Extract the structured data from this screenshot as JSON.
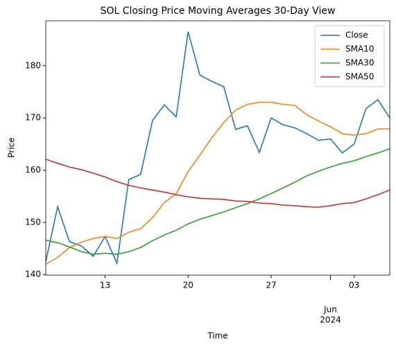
{
  "chart_data": {
    "type": "line",
    "title": "SOL Closing Price Moving Averages 30-Day View",
    "xlabel": "Time",
    "ylabel": "Price",
    "x": [
      "2024-05-08",
      "2024-05-09",
      "2024-05-10",
      "2024-05-11",
      "2024-05-12",
      "2024-05-13",
      "2024-05-14",
      "2024-05-15",
      "2024-05-16",
      "2024-05-17",
      "2024-05-18",
      "2024-05-19",
      "2024-05-20",
      "2024-05-21",
      "2024-05-22",
      "2024-05-23",
      "2024-05-24",
      "2024-05-25",
      "2024-05-26",
      "2024-05-27",
      "2024-05-28",
      "2024-05-29",
      "2024-05-30",
      "2024-05-31",
      "2024-06-01",
      "2024-06-02",
      "2024-06-03",
      "2024-06-04",
      "2024-06-05",
      "2024-06-06"
    ],
    "series": [
      {
        "name": "Close",
        "color": "#1f77b4",
        "values": [
          142.5,
          153,
          146.3,
          145.5,
          143.5,
          147.3,
          142.2,
          158.2,
          159.2,
          169.5,
          172.5,
          170.2,
          186.5,
          178.2,
          177,
          176,
          167.8,
          168.5,
          163.4,
          170,
          168.7,
          168.1,
          167,
          165.7,
          166,
          163.3,
          165,
          171.8,
          173.5,
          170
        ]
      },
      {
        "name": "SMA10",
        "color": "#ff7f0e",
        "values": [
          142.0,
          143.3,
          145.2,
          146.2,
          146.9,
          147.3,
          146.9,
          148.1,
          148.8,
          150.9,
          153.8,
          155.5,
          159.7,
          162.9,
          166.2,
          169.1,
          171.5,
          172.6,
          173.0,
          173.0,
          172.6,
          172.4,
          170.6,
          169.4,
          168.3,
          167.0,
          166.7,
          167.0,
          167.9,
          167.9
        ]
      },
      {
        "name": "SMA30",
        "color": "#2ca02c",
        "values": [
          146.6,
          146.1,
          145.3,
          144.4,
          143.9,
          144.1,
          143.9,
          144.4,
          145.2,
          146.5,
          147.6,
          148.5,
          149.7,
          150.6,
          151.3,
          152.0,
          152.8,
          153.6,
          154.5,
          155.5,
          156.6,
          157.7,
          158.9,
          159.8,
          160.6,
          161.3,
          161.8,
          162.6,
          163.3,
          164.1
        ]
      },
      {
        "name": "SMA50",
        "color": "#d62728",
        "values": [
          162.1,
          161.3,
          160.6,
          160.1,
          159.4,
          158.7,
          157.8,
          157.1,
          156.6,
          156.2,
          155.8,
          155.3,
          154.9,
          154.6,
          154.5,
          154.4,
          154.1,
          154.0,
          153.7,
          153.6,
          153.3,
          153.2,
          153.0,
          152.9,
          153.2,
          153.6,
          153.8,
          154.5,
          155.3,
          156.2
        ]
      }
    ],
    "xlim": [
      "2024-05-08",
      "2024-06-06"
    ],
    "xticks": [
      {
        "value": "2024-05-13",
        "label": "13"
      },
      {
        "value": "2024-05-20",
        "label": "20"
      },
      {
        "value": "2024-05-27",
        "label": "27"
      },
      {
        "value": "2024-06-03",
        "label": "03"
      }
    ],
    "xticks_major": [
      {
        "value": "2024-06-01",
        "label": [
          "Jun",
          "2024"
        ]
      }
    ],
    "ylim": [
      139.9,
      188.6
    ],
    "yticks": [
      140,
      150,
      160,
      170,
      180
    ],
    "legend": "upper right",
    "grid": false
  }
}
